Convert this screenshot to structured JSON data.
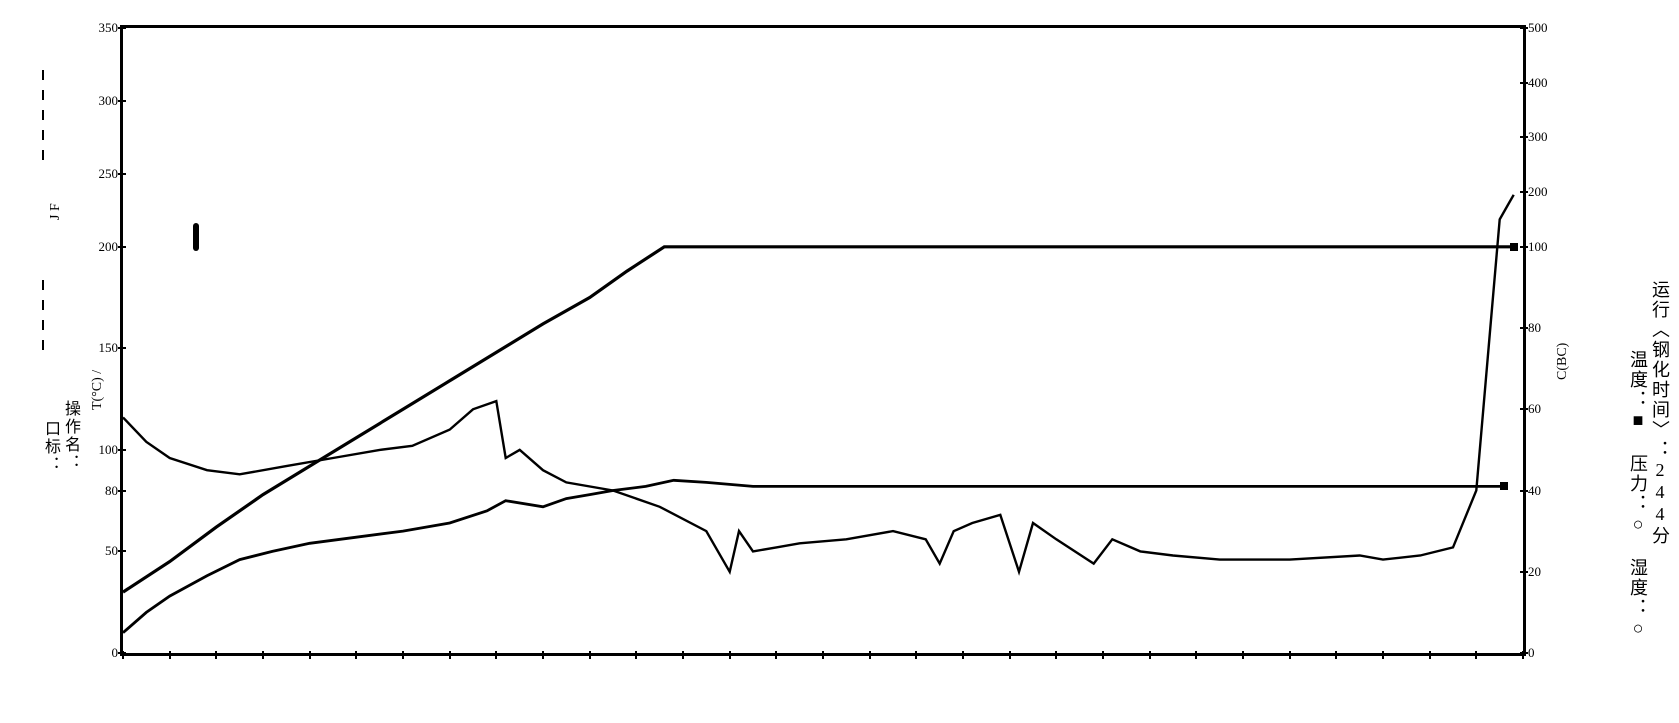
{
  "chart": {
    "type": "line",
    "background_color": "#ffffff",
    "line_color": "#000000",
    "border_width": 3,
    "line_width": 2.5,
    "left_axis": {
      "label": "T(°C) /",
      "unit_suffix": "°",
      "ticks": [
        0,
        50,
        80,
        100,
        150,
        200,
        250,
        300,
        350
      ],
      "lim": [
        0,
        350
      ]
    },
    "left_axis_upper": {
      "ticks": [
        200,
        250,
        300,
        350
      ]
    },
    "right_axis": {
      "label": "C(BC)",
      "ticks": [
        0,
        20,
        40,
        60,
        80,
        100,
        200,
        300,
        400,
        500
      ],
      "lim": [
        0,
        500
      ]
    },
    "x_axis": {
      "ticks_count": 30,
      "lim": [
        0,
        300
      ]
    },
    "series": {
      "temperature": {
        "name": "温度",
        "marker": "■",
        "points": [
          [
            0,
            30
          ],
          [
            10,
            45
          ],
          [
            20,
            62
          ],
          [
            30,
            78
          ],
          [
            40,
            92
          ],
          [
            50,
            106
          ],
          [
            60,
            120
          ],
          [
            70,
            134
          ],
          [
            80,
            148
          ],
          [
            90,
            162
          ],
          [
            100,
            175
          ],
          [
            108,
            188
          ],
          [
            116,
            200
          ],
          [
            120,
            200
          ],
          [
            140,
            200
          ],
          [
            160,
            200
          ],
          [
            180,
            200
          ],
          [
            200,
            200
          ],
          [
            220,
            200
          ],
          [
            240,
            200
          ],
          [
            260,
            200
          ],
          [
            280,
            200
          ],
          [
            298,
            200
          ]
        ]
      },
      "pressure": {
        "name": "压力",
        "marker": "○",
        "points": [
          [
            0,
            10
          ],
          [
            5,
            20
          ],
          [
            10,
            28
          ],
          [
            18,
            38
          ],
          [
            25,
            46
          ],
          [
            32,
            50
          ],
          [
            40,
            54
          ],
          [
            50,
            57
          ],
          [
            60,
            60
          ],
          [
            70,
            64
          ],
          [
            78,
            70
          ],
          [
            82,
            75
          ],
          [
            90,
            72
          ],
          [
            95,
            76
          ],
          [
            100,
            78
          ],
          [
            105,
            80
          ],
          [
            112,
            82
          ],
          [
            118,
            85
          ],
          [
            125,
            84
          ],
          [
            135,
            82
          ],
          [
            150,
            82
          ],
          [
            170,
            82
          ],
          [
            190,
            82
          ],
          [
            210,
            82
          ],
          [
            230,
            82
          ],
          [
            250,
            82
          ],
          [
            270,
            82
          ],
          [
            290,
            82
          ],
          [
            296,
            82
          ]
        ]
      },
      "humidity": {
        "name": "湿度",
        "marker": "□",
        "points": [
          [
            0,
            58
          ],
          [
            5,
            52
          ],
          [
            10,
            48
          ],
          [
            18,
            45
          ],
          [
            25,
            44
          ],
          [
            35,
            46
          ],
          [
            45,
            48
          ],
          [
            55,
            50
          ],
          [
            62,
            51
          ],
          [
            70,
            55
          ],
          [
            75,
            60
          ],
          [
            80,
            62
          ],
          [
            82,
            48
          ],
          [
            85,
            50
          ],
          [
            90,
            45
          ],
          [
            95,
            42
          ],
          [
            105,
            40
          ],
          [
            115,
            36
          ],
          [
            125,
            30
          ],
          [
            130,
            20
          ],
          [
            132,
            30
          ],
          [
            135,
            25
          ],
          [
            140,
            26
          ],
          [
            145,
            27
          ],
          [
            155,
            28
          ],
          [
            165,
            30
          ],
          [
            172,
            28
          ],
          [
            175,
            22
          ],
          [
            178,
            30
          ],
          [
            182,
            32
          ],
          [
            188,
            34
          ],
          [
            192,
            20
          ],
          [
            195,
            32
          ],
          [
            200,
            28
          ],
          [
            208,
            22
          ],
          [
            212,
            28
          ],
          [
            218,
            25
          ],
          [
            225,
            24
          ],
          [
            235,
            23
          ],
          [
            250,
            23
          ],
          [
            265,
            24
          ],
          [
            270,
            23
          ],
          [
            278,
            24
          ],
          [
            285,
            26
          ],
          [
            290,
            40
          ],
          [
            293,
            80
          ],
          [
            295,
            150
          ],
          [
            297,
            180
          ],
          [
            298,
            195
          ]
        ]
      }
    }
  },
  "left_vertical_labels": {
    "line1": "口标：",
    "line2": "操作名：",
    "line3": "J F"
  },
  "right_vertical_labels": {
    "legend": "温度：■  压力：○  湿度：○",
    "runtime_label": "运行〈钢化时间〉：",
    "runtime_value": "244分"
  }
}
